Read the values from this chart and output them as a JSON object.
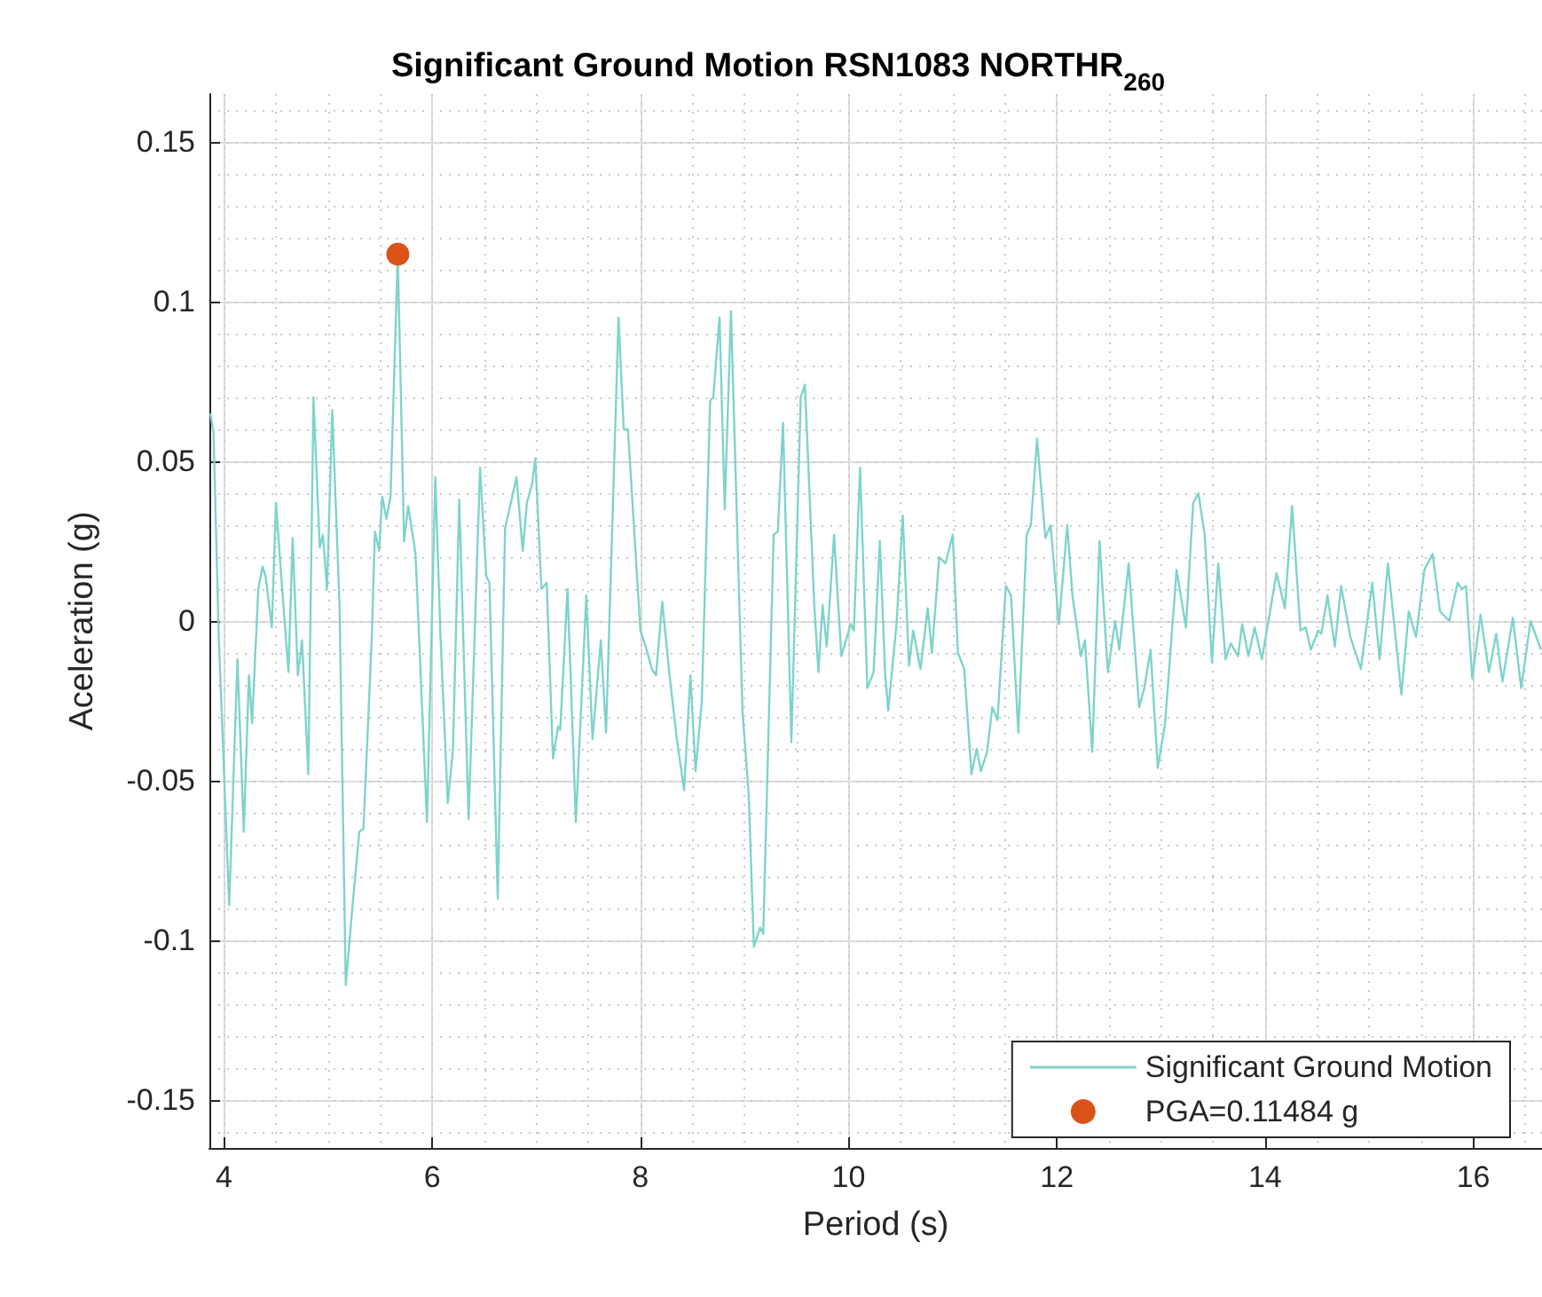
{
  "chart_data": {
    "type": "line",
    "title": "Significant Ground Motion RSN1083 NORTHR$_{260}$",
    "xlabel": "Period (s)",
    "ylabel": "Aceleration (g)",
    "xlim": [
      3.86,
      16.66
    ],
    "xticks": [
      4,
      6,
      8,
      10,
      12,
      14,
      16
    ],
    "ylim": [
      -0.165,
      0.165
    ],
    "yticks": [
      -0.15,
      -0.1,
      -0.05,
      0,
      0.05,
      0.1,
      0.15
    ],
    "grid": true,
    "legend": "bottom right",
    "series": [
      {
        "name": "Significant Ground Motion",
        "color": "#7fd3ca",
        "marker": "none",
        "x": [
          3.87,
          3.9,
          3.95,
          4.05,
          4.13,
          4.19,
          4.24,
          4.27,
          4.33,
          4.37,
          4.4,
          4.46,
          4.5,
          4.55,
          4.62,
          4.66,
          4.71,
          4.75,
          4.81,
          4.86,
          4.92,
          4.95,
          4.99,
          5.04,
          5.11,
          5.17,
          5.23,
          5.3,
          5.34,
          5.42,
          5.45,
          5.49,
          5.52,
          5.56,
          5.6,
          5.67,
          5.73,
          5.77,
          5.84,
          5.95,
          6.03,
          6.08,
          6.15,
          6.2,
          6.26,
          6.35,
          6.46,
          6.52,
          6.55,
          6.63,
          6.7,
          6.77,
          6.81,
          6.87,
          6.91,
          6.96,
          6.99,
          7.05,
          7.1,
          7.16,
          7.21,
          7.23,
          7.3,
          7.38,
          7.48,
          7.54,
          7.62,
          7.67,
          7.79,
          7.84,
          7.88,
          8.0,
          8.06,
          8.11,
          8.15,
          8.21,
          8.28,
          8.35,
          8.42,
          8.48,
          8.53,
          8.59,
          8.67,
          8.7,
          8.76,
          8.81,
          8.87,
          8.98,
          9.04,
          9.09,
          9.15,
          9.18,
          9.28,
          9.32,
          9.37,
          9.45,
          9.54,
          9.58,
          9.67,
          9.71,
          9.75,
          9.79,
          9.86,
          9.93,
          10.02,
          10.05,
          10.11,
          10.18,
          10.24,
          10.3,
          10.35,
          10.38,
          10.46,
          10.52,
          10.58,
          10.62,
          10.69,
          10.76,
          10.8,
          10.87,
          10.93,
          11.0,
          11.05,
          11.11,
          11.18,
          11.23,
          11.27,
          11.33,
          11.38,
          11.43,
          11.51,
          11.56,
          11.63,
          11.71,
          11.75,
          11.81,
          11.89,
          11.94,
          12.02,
          12.1,
          12.15,
          12.23,
          12.27,
          12.34,
          12.41,
          12.49,
          12.56,
          12.6,
          12.69,
          12.79,
          12.84,
          12.9,
          12.97,
          13.04,
          13.15,
          13.24,
          13.31,
          13.36,
          13.42,
          13.49,
          13.55,
          13.62,
          13.67,
          13.74,
          13.78,
          13.84,
          13.9,
          13.97,
          14.11,
          14.19,
          14.26,
          14.34,
          14.39,
          14.44,
          14.51,
          14.54,
          14.6,
          14.67,
          14.73,
          14.82,
          14.92,
          15.03,
          15.1,
          15.18,
          15.31,
          15.38,
          15.45,
          15.53,
          15.61,
          15.68,
          15.77,
          15.85,
          15.89,
          15.93,
          15.99,
          16.07,
          16.15,
          16.22,
          16.28,
          16.38,
          16.46,
          16.55,
          16.65
        ],
        "values": [
          0.065,
          0.059,
          -0.005,
          -0.089,
          -0.012,
          -0.066,
          -0.017,
          -0.032,
          0.01,
          0.017,
          0.014,
          -0.002,
          0.037,
          0.014,
          -0.016,
          0.026,
          -0.017,
          -0.006,
          -0.048,
          0.07,
          0.023,
          0.027,
          0.01,
          0.066,
          0.005,
          -0.114,
          -0.091,
          -0.066,
          -0.065,
          -0.005,
          0.028,
          0.022,
          0.039,
          0.032,
          0.039,
          0.1148,
          0.025,
          0.036,
          0.021,
          -0.063,
          0.045,
          -0.005,
          -0.057,
          -0.04,
          0.038,
          -0.062,
          0.048,
          0.014,
          0.012,
          -0.087,
          0.029,
          0.039,
          0.045,
          0.022,
          0.037,
          0.043,
          0.051,
          0.01,
          0.012,
          -0.043,
          -0.033,
          -0.034,
          0.01,
          -0.063,
          0.008,
          -0.037,
          -0.006,
          -0.035,
          0.095,
          0.06,
          0.06,
          -0.003,
          -0.009,
          -0.015,
          -0.017,
          0.006,
          -0.017,
          -0.037,
          -0.053,
          -0.017,
          -0.047,
          -0.025,
          0.069,
          0.07,
          0.095,
          0.035,
          0.097,
          -0.028,
          -0.054,
          -0.102,
          -0.096,
          -0.098,
          0.027,
          0.028,
          0.062,
          -0.038,
          0.07,
          0.074,
          0.005,
          -0.016,
          0.005,
          -0.008,
          0.027,
          -0.011,
          -0.001,
          -0.003,
          0.048,
          -0.021,
          -0.016,
          0.025,
          -0.016,
          -0.028,
          -0.001,
          0.033,
          -0.014,
          -0.003,
          -0.015,
          0.004,
          -0.01,
          0.02,
          0.018,
          0.027,
          -0.01,
          -0.015,
          -0.048,
          -0.04,
          -0.047,
          -0.041,
          -0.027,
          -0.031,
          0.011,
          0.008,
          -0.035,
          0.027,
          0.03,
          0.057,
          0.026,
          0.03,
          -0.001,
          0.03,
          0.008,
          -0.011,
          -0.006,
          -0.041,
          0.025,
          -0.016,
          0.0,
          -0.009,
          0.018,
          -0.027,
          -0.021,
          -0.009,
          -0.046,
          -0.032,
          0.016,
          -0.002,
          0.037,
          0.04,
          0.027,
          -0.013,
          0.018,
          -0.012,
          -0.007,
          -0.011,
          -0.001,
          -0.011,
          -0.002,
          -0.012,
          0.015,
          0.004,
          0.036,
          -0.003,
          -0.002,
          -0.009,
          -0.003,
          -0.004,
          0.008,
          -0.008,
          0.011,
          -0.005,
          -0.015,
          0.012,
          -0.012,
          0.018,
          -0.023,
          0.003,
          -0.005,
          0.016,
          0.021,
          0.003,
          0.0,
          0.012,
          0.01,
          0.011,
          -0.018,
          0.002,
          -0.016,
          -0.004,
          -0.019,
          0.001,
          -0.021,
          0.0,
          -0.009
        ]
      },
      {
        "name": "PGA=0.11484 g",
        "type": "scatter",
        "color": "#d95319",
        "marker": "circle",
        "x": [
          5.67
        ],
        "values": [
          0.11484
        ]
      }
    ]
  }
}
